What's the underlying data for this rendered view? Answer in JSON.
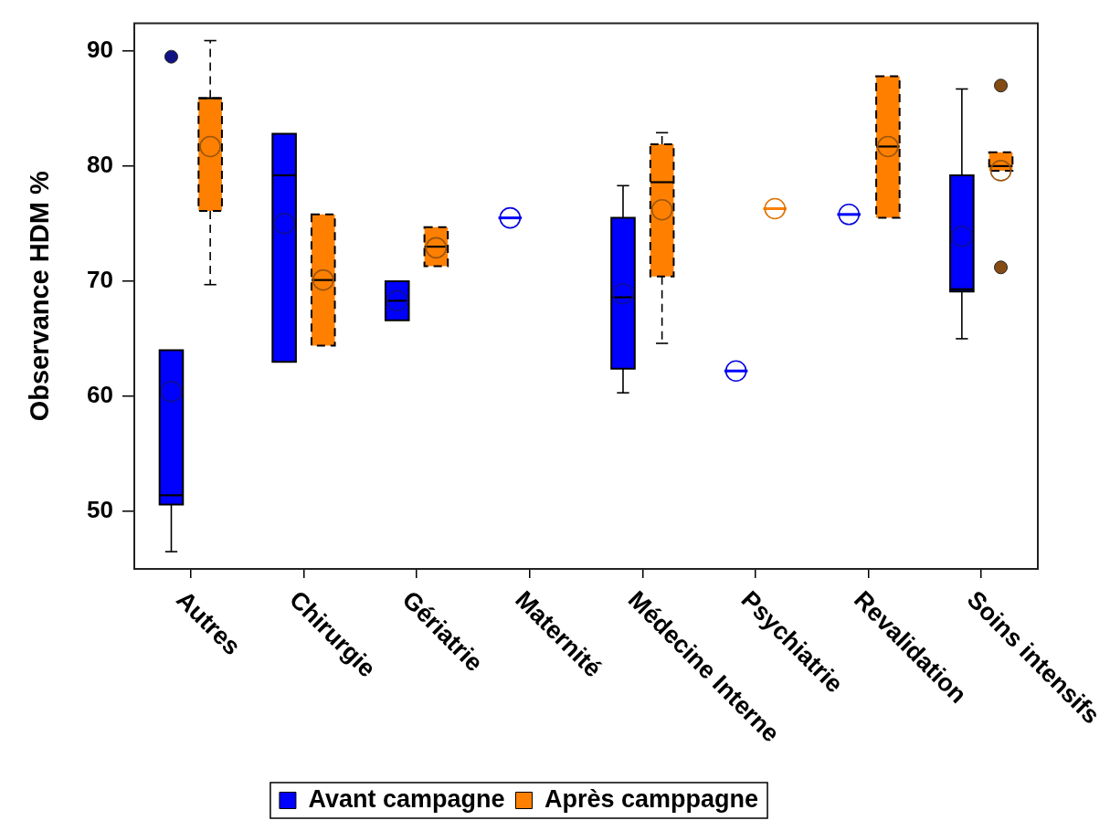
{
  "chart_data": {
    "type": "box",
    "ylabel": "Observance HDM %",
    "categories": [
      "Autres",
      "Chirurgie",
      "Gériatrie",
      "Maternité",
      "Médecine Interne",
      "Psychiatrie",
      "Revalidation",
      "Soins intensifs"
    ],
    "series": [
      {
        "name": "Avant campagne",
        "color": "#0000ff",
        "line_style": "solid",
        "boxes": [
          {
            "low": 46.5,
            "q1": 50.6,
            "median": 51.4,
            "q3": 64.0,
            "high": 64.0,
            "mean": 60.4,
            "outliers": [
              89.5
            ]
          },
          {
            "low": 63.0,
            "q1": 63.0,
            "median": 79.2,
            "q3": 82.8,
            "high": 82.8,
            "mean": 75.0
          },
          {
            "low": 66.6,
            "q1": 66.6,
            "median": 68.3,
            "q3": 70.0,
            "high": 70.0,
            "mean": 68.3
          },
          {
            "low": 75.5,
            "q1": 75.5,
            "median": 75.5,
            "q3": 75.5,
            "high": 75.5,
            "mean": 75.5
          },
          {
            "low": 60.3,
            "q1": 62.4,
            "median": 68.6,
            "q3": 75.5,
            "high": 78.3,
            "mean": 68.9
          },
          {
            "low": 62.2,
            "q1": 62.2,
            "median": 62.2,
            "q3": 62.2,
            "high": 62.2,
            "mean": 62.2
          },
          {
            "low": 75.8,
            "q1": 75.8,
            "median": 75.8,
            "q3": 75.8,
            "high": 75.8,
            "mean": 75.8
          },
          {
            "low": 65.0,
            "q1": 69.1,
            "median": 69.3,
            "q3": 79.2,
            "high": 86.7,
            "mean": 73.9
          }
        ]
      },
      {
        "name": "Après camppagne",
        "color": "#ff8000",
        "line_style": "dashed",
        "boxes": [
          {
            "low": 69.7,
            "q1": 76.1,
            "median": 85.9,
            "q3": 85.9,
            "high": 90.9,
            "mean": 81.7
          },
          {
            "low": 64.4,
            "q1": 64.4,
            "median": 70.1,
            "q3": 75.8,
            "high": 75.8,
            "mean": 70.1
          },
          {
            "low": 71.3,
            "q1": 71.3,
            "median": 73.0,
            "q3": 74.7,
            "high": 74.7,
            "mean": 72.9
          },
          null,
          {
            "low": 64.6,
            "q1": 70.4,
            "median": 78.6,
            "q3": 81.9,
            "high": 82.9,
            "mean": 76.2
          },
          {
            "low": 76.3,
            "q1": 76.3,
            "median": 76.3,
            "q3": 76.3,
            "high": 76.3,
            "mean": 76.3
          },
          {
            "low": 75.5,
            "q1": 75.5,
            "median": 81.7,
            "q3": 87.8,
            "high": 87.8,
            "mean": 81.7
          },
          {
            "low": 79.6,
            "q1": 79.6,
            "median": 80.0,
            "q3": 81.2,
            "high": 81.2,
            "mean": 79.6,
            "outliers": [
              87.0,
              71.2
            ]
          }
        ]
      }
    ],
    "ylim": [
      45,
      92.4
    ],
    "yticks": [
      50,
      60,
      70,
      80,
      90
    ],
    "legend": "bottom",
    "marker": "circle"
  }
}
